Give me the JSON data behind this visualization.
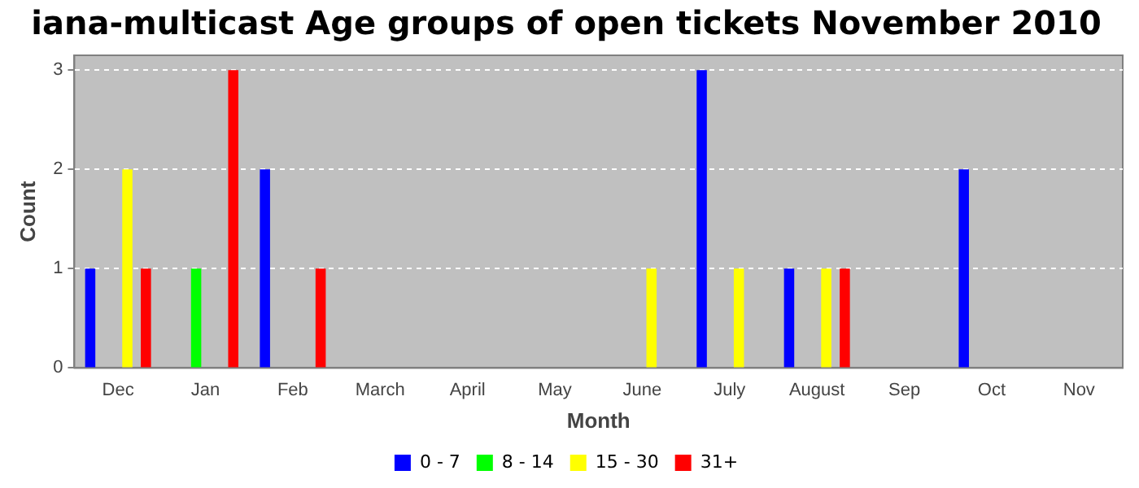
{
  "chart_data": {
    "type": "bar",
    "title": "iana-multicast Age groups of open tickets November 2010",
    "xlabel": "Month",
    "ylabel": "Count",
    "categories": [
      "Dec",
      "Jan",
      "Feb",
      "March",
      "April",
      "May",
      "June",
      "July",
      "August",
      "Sep",
      "Oct",
      "Nov"
    ],
    "series": [
      {
        "name": "0 - 7",
        "color": "#0000ff",
        "values": [
          1,
          0,
          2,
          0,
          0,
          0,
          0,
          3,
          1,
          0,
          2,
          0
        ]
      },
      {
        "name": "8 - 14",
        "color": "#00ff00",
        "values": [
          0,
          1,
          0,
          0,
          0,
          0,
          0,
          0,
          0,
          0,
          0,
          0
        ]
      },
      {
        "name": "15 - 30",
        "color": "#ffff00",
        "values": [
          2,
          0,
          0,
          0,
          0,
          0,
          1,
          1,
          1,
          0,
          0,
          0
        ]
      },
      {
        "name": "31+",
        "color": "#ff0000",
        "values": [
          1,
          3,
          1,
          0,
          0,
          0,
          0,
          0,
          1,
          0,
          0,
          0
        ]
      }
    ],
    "ylim": [
      0,
      3.15
    ],
    "yticks": [
      0,
      1,
      2,
      3
    ],
    "grid": "y",
    "legend": "bottom"
  }
}
